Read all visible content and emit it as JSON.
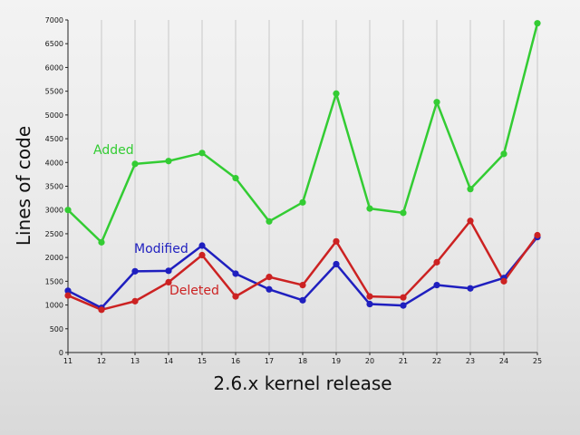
{
  "chart_data": {
    "type": "line",
    "title": "",
    "xlabel": "2.6.x kernel release",
    "ylabel": "Lines of code",
    "x": [
      11,
      12,
      13,
      14,
      15,
      16,
      17,
      18,
      19,
      20,
      21,
      22,
      23,
      24,
      25
    ],
    "ylim": [
      0,
      7000
    ],
    "yticks": [
      0,
      500,
      1000,
      1500,
      2000,
      2500,
      3000,
      3500,
      4000,
      4500,
      5000,
      5500,
      6000,
      6500,
      7000
    ],
    "grid": true,
    "legend": "inline labels",
    "series": [
      {
        "name": "Added",
        "color": "#33cc33",
        "values": [
          3000,
          2320,
          3970,
          4030,
          4200,
          3670,
          2760,
          3160,
          5450,
          3030,
          2940,
          5270,
          3440,
          4180,
          6930
        ]
      },
      {
        "name": "Modified",
        "color": "#1f1fbf",
        "values": [
          1300,
          940,
          1710,
          1720,
          2250,
          1660,
          1330,
          1100,
          1860,
          1020,
          990,
          1420,
          1350,
          1570,
          2430
        ]
      },
      {
        "name": "Deleted",
        "color": "#cc2222",
        "values": [
          1200,
          900,
          1080,
          1480,
          2050,
          1180,
          1590,
          1420,
          2340,
          1180,
          1160,
          1900,
          2770,
          1500,
          2470
        ]
      }
    ]
  }
}
